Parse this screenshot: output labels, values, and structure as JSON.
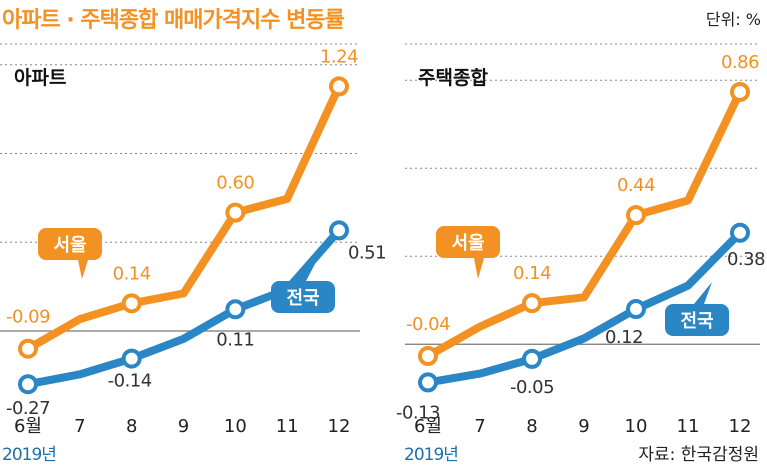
{
  "title": "아파트 · 주택종합 매매가격지수 변동률",
  "unit_label": "단위: %",
  "source": "자료: 한국감정원",
  "year_label": "2019년",
  "colors": {
    "seoul": "#F39223",
    "national": "#2B86C5",
    "title": "#F39223",
    "label_dark": "#333333"
  },
  "chart_data": [
    {
      "type": "line",
      "title": "아파트",
      "categories": [
        "6월",
        "7",
        "8",
        "9",
        "10",
        "11",
        "12"
      ],
      "ylim": [
        -0.35,
        1.45
      ],
      "grid": true,
      "series": [
        {
          "name": "서울",
          "values": [
            -0.09,
            0.06,
            0.14,
            0.19,
            0.6,
            0.67,
            1.24
          ],
          "labels": [
            "-0.09",
            "",
            "0.14",
            "",
            "0.60",
            "",
            "1.24"
          ]
        },
        {
          "name": "전국",
          "values": [
            -0.27,
            -0.22,
            -0.14,
            -0.04,
            0.11,
            0.21,
            0.51
          ],
          "labels": [
            "-0.27",
            "",
            "-0.14",
            "",
            "0.11",
            "",
            "0.51"
          ]
        }
      ]
    },
    {
      "type": "line",
      "title": "주택종합",
      "categories": [
        "6월",
        "7",
        "8",
        "9",
        "10",
        "11",
        "12"
      ],
      "ylim": [
        -0.19,
        1.02
      ],
      "grid": true,
      "series": [
        {
          "name": "서울",
          "values": [
            -0.04,
            0.06,
            0.14,
            0.16,
            0.44,
            0.49,
            0.86
          ],
          "labels": [
            "-0.04",
            "",
            "0.14",
            "",
            "0.44",
            "",
            "0.86"
          ]
        },
        {
          "name": "전국",
          "values": [
            -0.13,
            -0.1,
            -0.05,
            0.02,
            0.12,
            0.2,
            0.38
          ],
          "labels": [
            "-0.13",
            "",
            "-0.05",
            "",
            "0.12",
            "",
            "0.38"
          ]
        }
      ]
    }
  ]
}
